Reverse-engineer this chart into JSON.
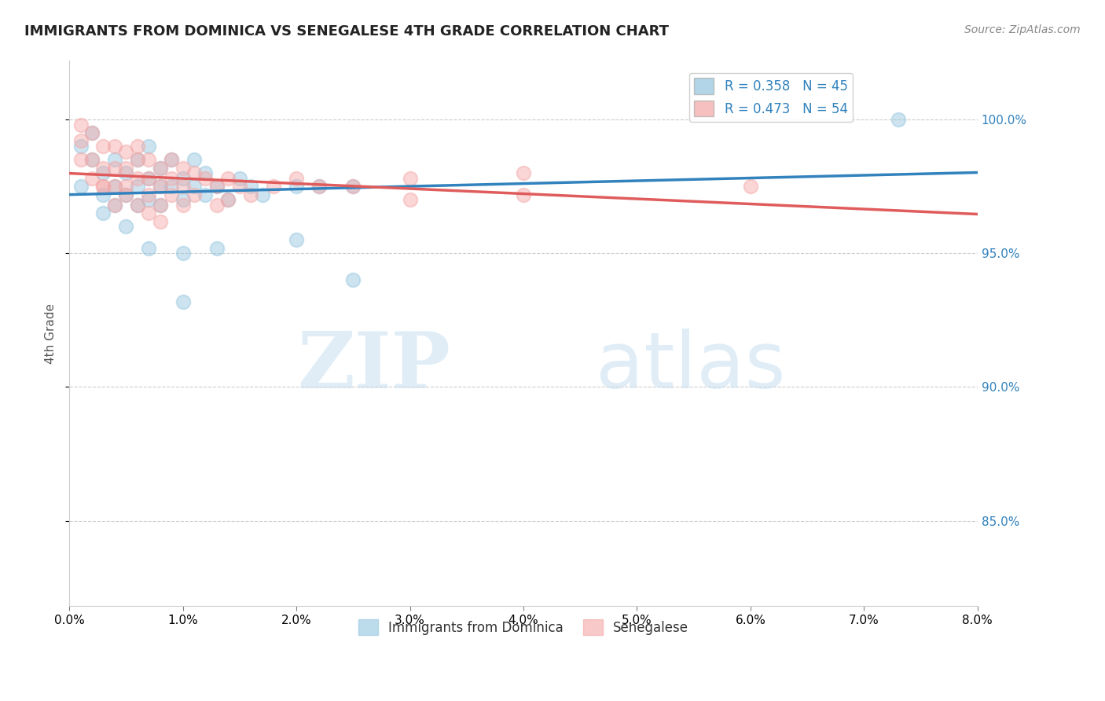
{
  "title": "IMMIGRANTS FROM DOMINICA VS SENEGALESE 4TH GRADE CORRELATION CHART",
  "source": "Source: ZipAtlas.com",
  "ylabel": "4th Grade",
  "yaxis_labels": [
    "100.0%",
    "95.0%",
    "90.0%",
    "85.0%"
  ],
  "yaxis_values": [
    1.0,
    0.95,
    0.9,
    0.85
  ],
  "xmin": 0.0,
  "xmax": 0.08,
  "ymin": 0.818,
  "ymax": 1.022,
  "blue_R": 0.358,
  "blue_N": 45,
  "pink_R": 0.473,
  "pink_N": 54,
  "blue_color": "#92c5de",
  "pink_color": "#f4a6a6",
  "blue_line_color": "#3182bd",
  "pink_line_color": "#e05c5c",
  "watermark_zip": "ZIP",
  "watermark_atlas": "atlas",
  "blue_scatter_x": [
    0.001,
    0.001,
    0.002,
    0.002,
    0.003,
    0.003,
    0.003,
    0.004,
    0.004,
    0.004,
    0.005,
    0.005,
    0.005,
    0.006,
    0.006,
    0.006,
    0.007,
    0.007,
    0.007,
    0.008,
    0.008,
    0.008,
    0.009,
    0.009,
    0.01,
    0.01,
    0.011,
    0.011,
    0.012,
    0.012,
    0.013,
    0.014,
    0.015,
    0.016,
    0.017,
    0.02,
    0.022,
    0.025,
    0.007,
    0.01,
    0.013,
    0.02,
    0.025,
    0.073,
    0.01
  ],
  "blue_scatter_y": [
    0.99,
    0.975,
    0.985,
    0.995,
    0.98,
    0.972,
    0.965,
    0.985,
    0.975,
    0.968,
    0.98,
    0.972,
    0.96,
    0.975,
    0.968,
    0.985,
    0.978,
    0.97,
    0.99,
    0.982,
    0.975,
    0.968,
    0.985,
    0.975,
    0.978,
    0.97,
    0.975,
    0.985,
    0.98,
    0.972,
    0.975,
    0.97,
    0.978,
    0.975,
    0.972,
    0.975,
    0.975,
    0.975,
    0.952,
    0.95,
    0.952,
    0.955,
    0.94,
    1.0,
    0.932
  ],
  "pink_scatter_x": [
    0.001,
    0.001,
    0.001,
    0.002,
    0.002,
    0.002,
    0.003,
    0.003,
    0.003,
    0.004,
    0.004,
    0.004,
    0.005,
    0.005,
    0.005,
    0.006,
    0.006,
    0.006,
    0.007,
    0.007,
    0.007,
    0.008,
    0.008,
    0.008,
    0.009,
    0.009,
    0.009,
    0.01,
    0.01,
    0.01,
    0.011,
    0.011,
    0.012,
    0.013,
    0.013,
    0.014,
    0.014,
    0.015,
    0.016,
    0.018,
    0.02,
    0.022,
    0.025,
    0.03,
    0.04,
    0.003,
    0.004,
    0.005,
    0.006,
    0.007,
    0.008,
    0.06,
    0.04,
    0.03
  ],
  "pink_scatter_y": [
    0.998,
    0.992,
    0.985,
    0.995,
    0.985,
    0.978,
    0.99,
    0.982,
    0.975,
    0.99,
    0.982,
    0.975,
    0.988,
    0.982,
    0.975,
    0.985,
    0.978,
    0.99,
    0.985,
    0.978,
    0.972,
    0.982,
    0.975,
    0.968,
    0.985,
    0.978,
    0.972,
    0.982,
    0.975,
    0.968,
    0.98,
    0.972,
    0.978,
    0.975,
    0.968,
    0.978,
    0.97,
    0.975,
    0.972,
    0.975,
    0.978,
    0.975,
    0.975,
    0.978,
    0.98,
    0.975,
    0.968,
    0.972,
    0.968,
    0.965,
    0.962,
    0.975,
    0.972,
    0.97
  ]
}
